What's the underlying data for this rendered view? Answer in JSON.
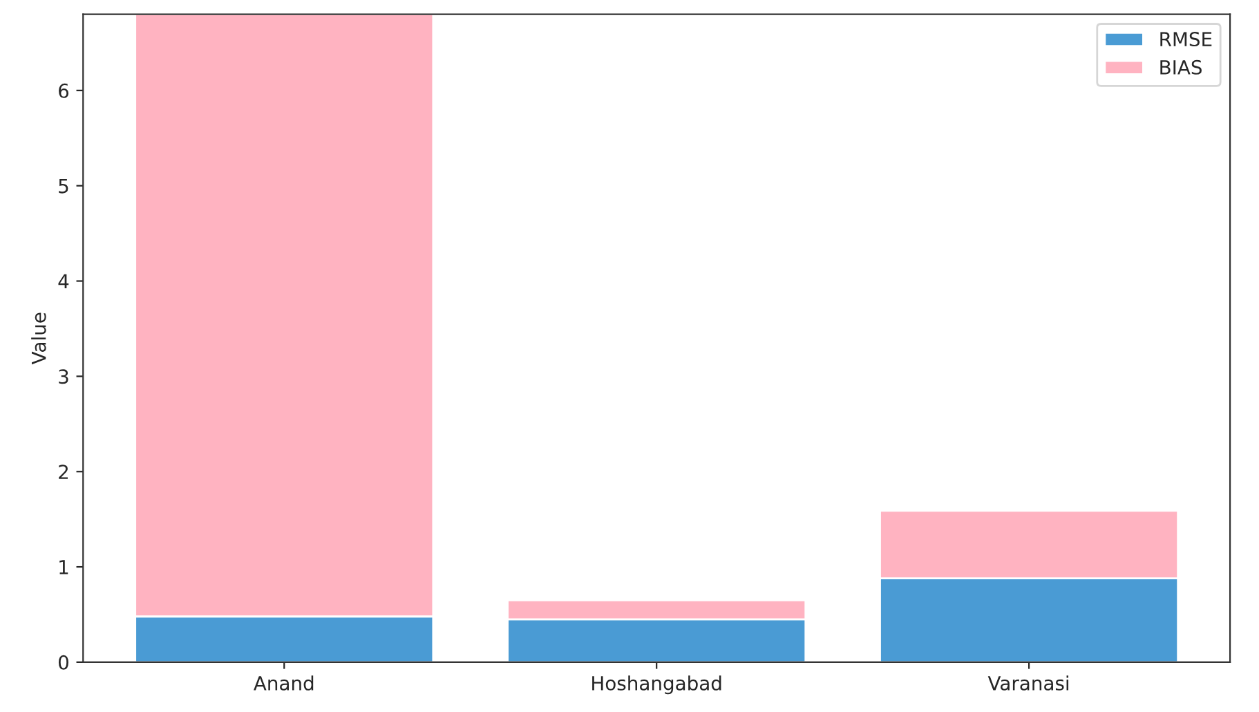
{
  "chart_data": {
    "type": "bar",
    "ylabel": "Value",
    "categories": [
      "Anand",
      "Hoshangabad",
      "Varanasi"
    ],
    "stacked": true,
    "series": [
      {
        "name": "RMSE",
        "color": "#4a9bd4",
        "values": [
          0.48,
          0.45,
          0.88
        ]
      },
      {
        "name": "BIAS",
        "color": "#ffb3c1",
        "values": [
          6.32,
          0.2,
          0.71
        ]
      }
    ],
    "ylim": [
      0,
      6.8
    ],
    "yticks": [
      0,
      1,
      2,
      3,
      4,
      5,
      6
    ],
    "legend": "top right",
    "grid": false
  }
}
